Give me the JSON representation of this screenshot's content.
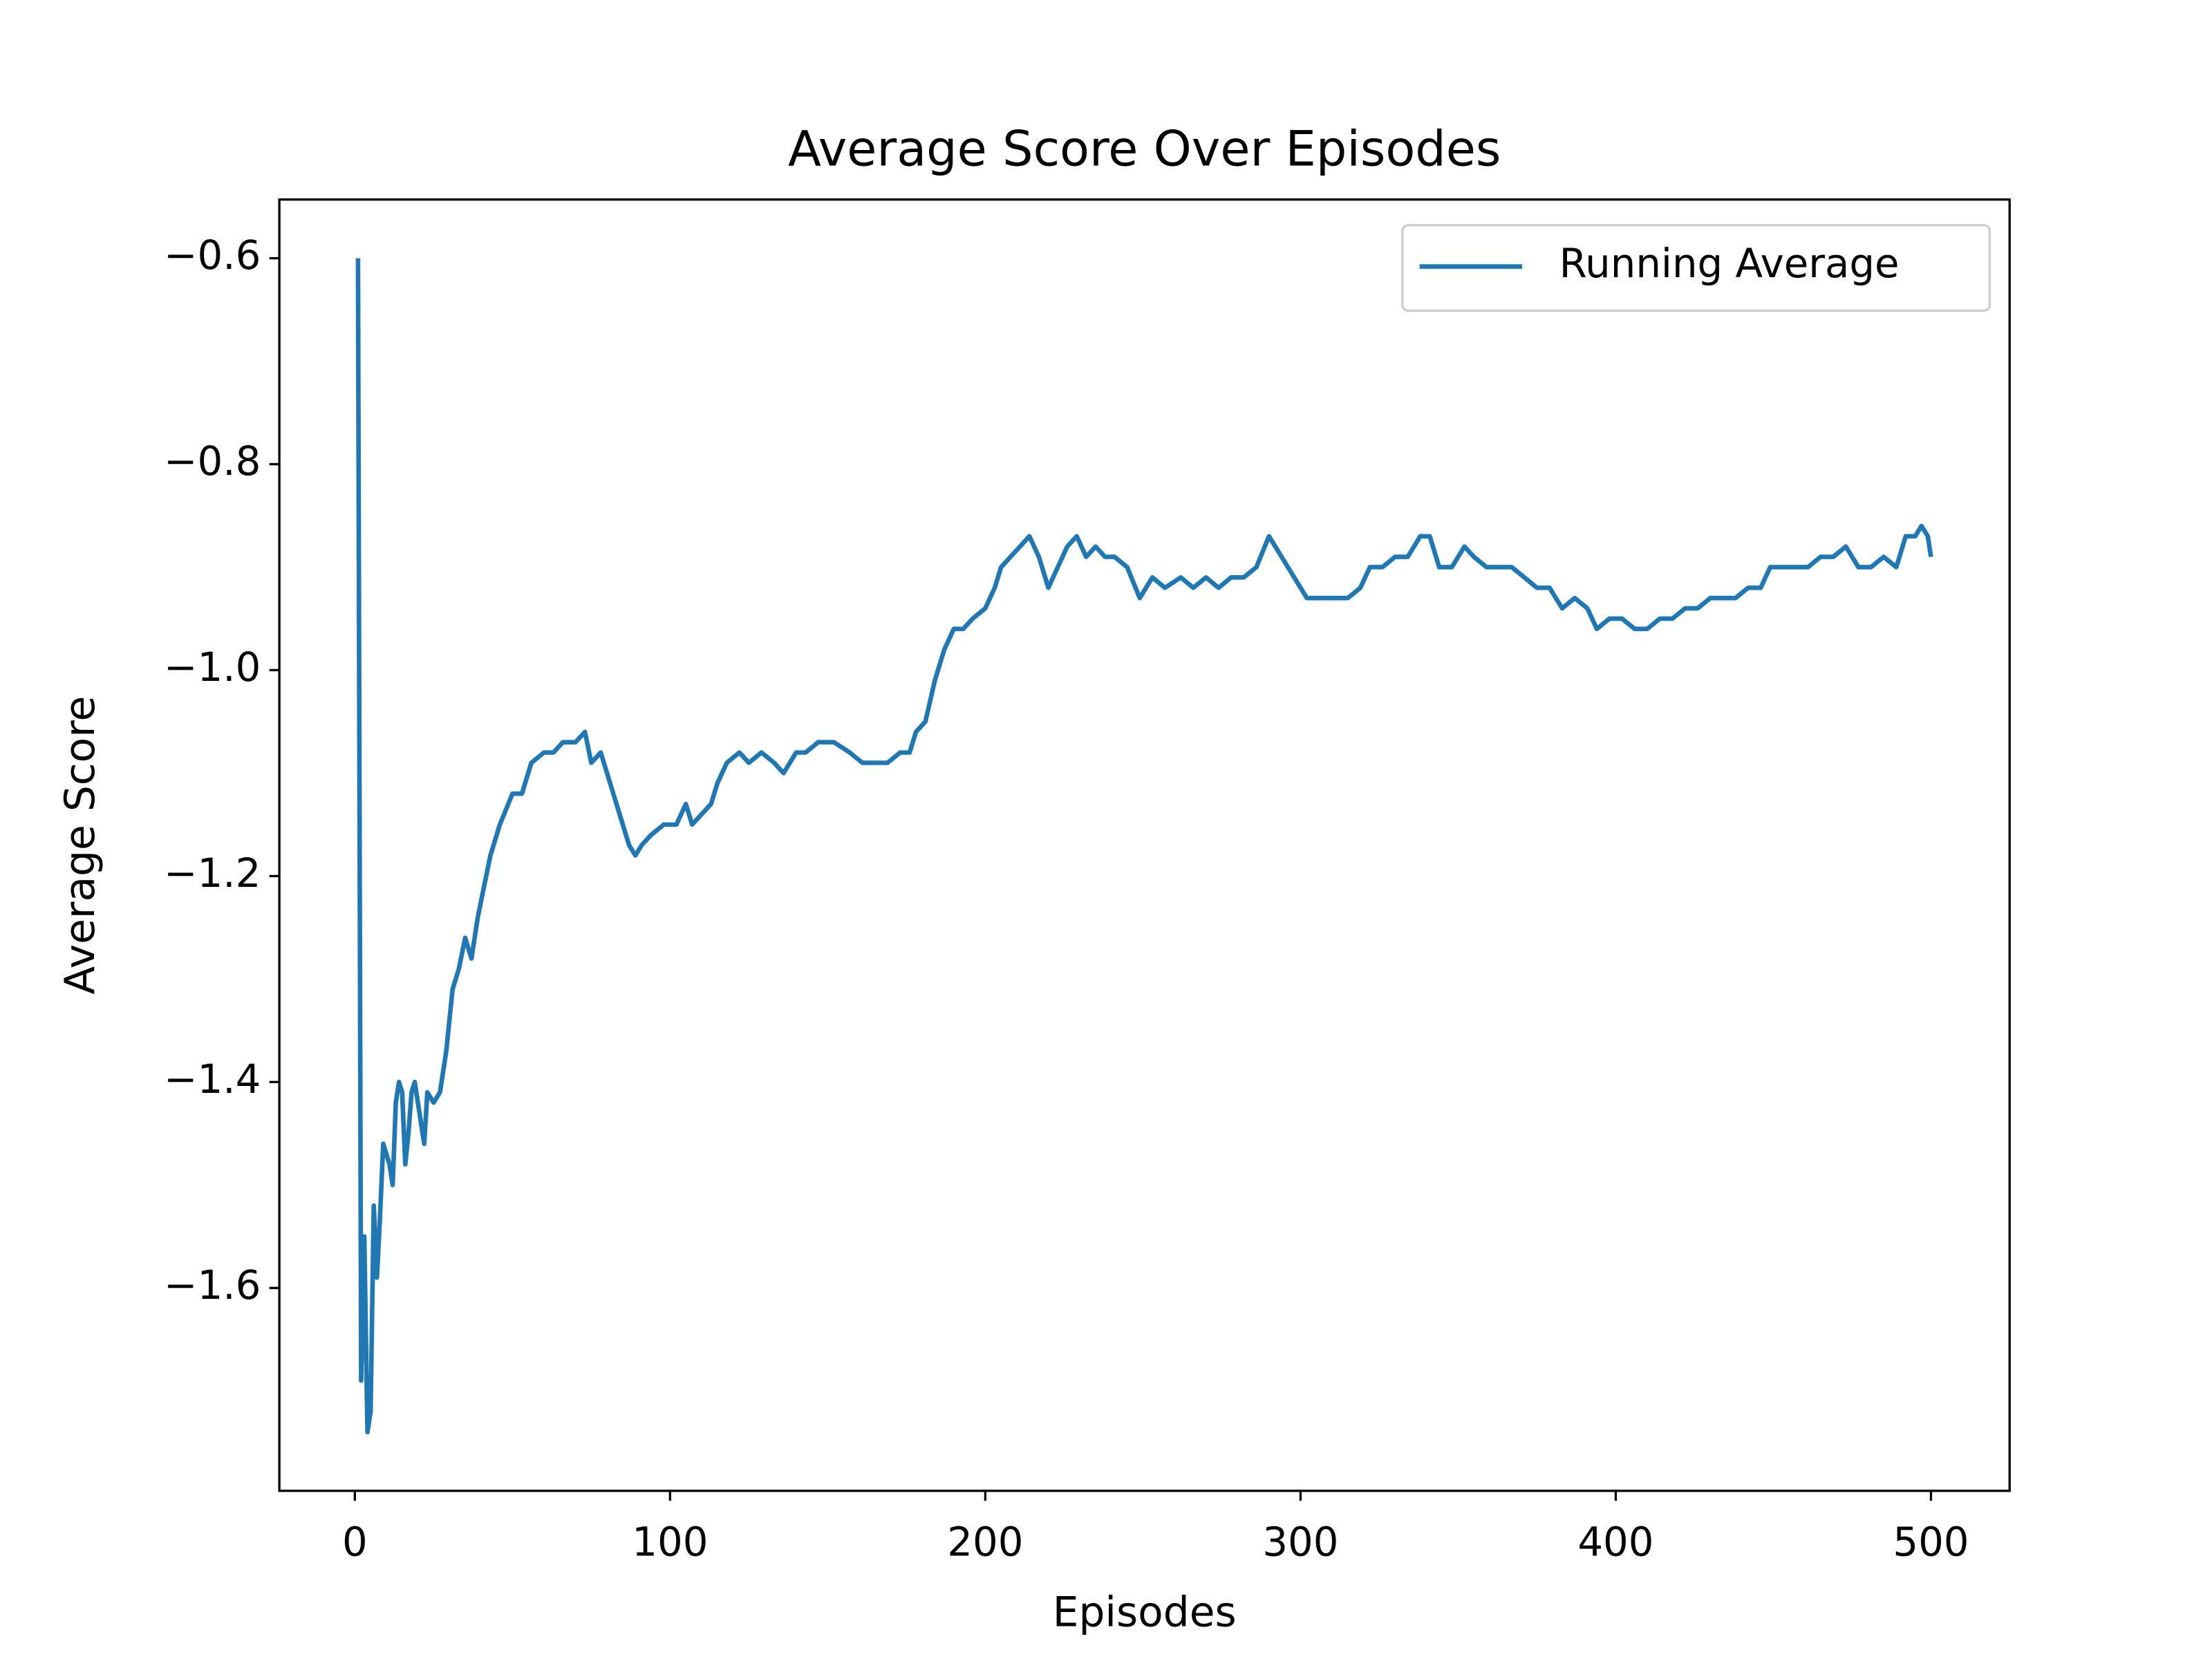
{
  "chart_data": {
    "type": "line",
    "title": "Average Score Over Episodes",
    "x_label": "Episodes",
    "y_label": "Average Score",
    "x": [
      1,
      2,
      3,
      4,
      5,
      6,
      7,
      8,
      9,
      10,
      11,
      12,
      13,
      14,
      15,
      16,
      17,
      18,
      19,
      20,
      22,
      23,
      25,
      27,
      29,
      31,
      33,
      35,
      37,
      39,
      41,
      43,
      46,
      50,
      53,
      56,
      60,
      63,
      66,
      70,
      73,
      75,
      78,
      81,
      84,
      87,
      89,
      91,
      94,
      98,
      102,
      105,
      107,
      110,
      113,
      115,
      118,
      122,
      125,
      129,
      133,
      136,
      140,
      143,
      147,
      152,
      157,
      161,
      166,
      169,
      173,
      176,
      178,
      181,
      184,
      187,
      190,
      193,
      196,
      200,
      203,
      205,
      208,
      211,
      214,
      217,
      220,
      223,
      226,
      229,
      232,
      235,
      238,
      241,
      245,
      249,
      253,
      257,
      262,
      266,
      270,
      274,
      278,
      282,
      286,
      290,
      294,
      298,
      302,
      306,
      310,
      315,
      319,
      322,
      326,
      330,
      334,
      338,
      341,
      344,
      348,
      352,
      355,
      359,
      363,
      367,
      371,
      375,
      379,
      383,
      387,
      391,
      394,
      398,
      402,
      406,
      410,
      414,
      418,
      422,
      426,
      430,
      434,
      438,
      442,
      446,
      449,
      453,
      457,
      461,
      465,
      469,
      473,
      477,
      481,
      485,
      489,
      492,
      495,
      497,
      499,
      500
    ],
    "series": [
      {
        "name": "Running Average",
        "color": "#1f77b4",
        "values": [
          -0.6,
          -1.69,
          -1.55,
          -1.74,
          -1.72,
          -1.52,
          -1.59,
          -1.53,
          -1.46,
          -1.47,
          -1.48,
          -1.5,
          -1.42,
          -1.4,
          -1.41,
          -1.48,
          -1.45,
          -1.41,
          -1.4,
          -1.42,
          -1.46,
          -1.41,
          -1.42,
          -1.41,
          -1.37,
          -1.31,
          -1.29,
          -1.26,
          -1.28,
          -1.24,
          -1.21,
          -1.18,
          -1.15,
          -1.12,
          -1.12,
          -1.09,
          -1.08,
          -1.08,
          -1.07,
          -1.07,
          -1.06,
          -1.09,
          -1.08,
          -1.11,
          -1.14,
          -1.17,
          -1.18,
          -1.17,
          -1.16,
          -1.15,
          -1.15,
          -1.13,
          -1.15,
          -1.14,
          -1.13,
          -1.11,
          -1.09,
          -1.08,
          -1.09,
          -1.08,
          -1.09,
          -1.1,
          -1.08,
          -1.08,
          -1.07,
          -1.07,
          -1.08,
          -1.09,
          -1.09,
          -1.09,
          -1.08,
          -1.08,
          -1.06,
          -1.05,
          -1.01,
          -0.98,
          -0.96,
          -0.96,
          -0.95,
          -0.94,
          -0.92,
          -0.9,
          -0.89,
          -0.88,
          -0.87,
          -0.89,
          -0.92,
          -0.9,
          -0.88,
          -0.87,
          -0.89,
          -0.88,
          -0.89,
          -0.89,
          -0.9,
          -0.93,
          -0.91,
          -0.92,
          -0.91,
          -0.92,
          -0.91,
          -0.92,
          -0.91,
          -0.91,
          -0.9,
          -0.87,
          -0.89,
          -0.91,
          -0.93,
          -0.93,
          -0.93,
          -0.93,
          -0.92,
          -0.9,
          -0.9,
          -0.89,
          -0.89,
          -0.87,
          -0.87,
          -0.9,
          -0.9,
          -0.88,
          -0.89,
          -0.9,
          -0.9,
          -0.9,
          -0.91,
          -0.92,
          -0.92,
          -0.94,
          -0.93,
          -0.94,
          -0.96,
          -0.95,
          -0.95,
          -0.96,
          -0.96,
          -0.95,
          -0.95,
          -0.94,
          -0.94,
          -0.93,
          -0.93,
          -0.93,
          -0.92,
          -0.92,
          -0.9,
          -0.9,
          -0.9,
          -0.9,
          -0.89,
          -0.89,
          -0.88,
          -0.9,
          -0.9,
          -0.89,
          -0.9,
          -0.87,
          -0.87,
          -0.86,
          -0.87,
          -0.89
        ]
      }
    ],
    "xlim": [
      -23.95,
      524.95
    ],
    "ylim": [
      -1.797,
      -0.543
    ],
    "xticks": [
      0,
      100,
      200,
      300,
      400,
      500
    ],
    "yticks": [
      {
        "value": -1.6,
        "label": "−1.6"
      },
      {
        "value": -1.4,
        "label": "−1.4"
      },
      {
        "value": -1.2,
        "label": "−1.2"
      },
      {
        "value": -1.0,
        "label": "−1.0"
      },
      {
        "value": -0.8,
        "label": "−0.8"
      },
      {
        "value": -0.6,
        "label": "−0.6"
      }
    ],
    "legend": "upper right"
  }
}
